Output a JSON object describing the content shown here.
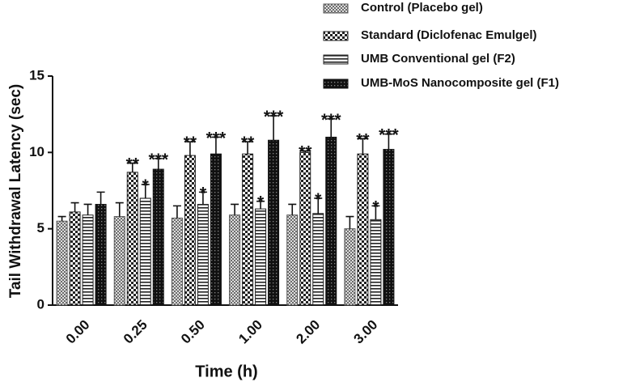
{
  "chart_data": {
    "type": "bar",
    "ylabel": "Tail Withdrawal Latency (sec)",
    "xlabel": "Time (h)",
    "categories": [
      "0.00",
      "0.25",
      "0.50",
      "1.00",
      "2.00",
      "3.00"
    ],
    "ylim": [
      0,
      15
    ],
    "yticks": [
      0,
      5,
      10,
      15
    ],
    "legend": "top-right",
    "series": [
      {
        "name": "Control (Placebo gel)",
        "color": "#555555",
        "pattern": "crosshatch",
        "values": [
          5.5,
          5.8,
          5.7,
          5.9,
          5.9,
          5.0
        ],
        "errors": [
          0.3,
          0.9,
          0.8,
          0.7,
          0.7,
          0.8
        ],
        "annotations": [
          null,
          null,
          null,
          null,
          null,
          null
        ]
      },
      {
        "name": "Standard (Diclofenac Emulgel)",
        "color": "#222222",
        "pattern": "checker",
        "values": [
          6.1,
          8.7,
          9.8,
          9.9,
          10.0,
          9.9
        ],
        "errors": [
          0.6,
          0.6,
          0.9,
          0.8,
          0.1,
          1.0
        ],
        "annotations": [
          null,
          "**",
          "**",
          "**",
          "**",
          "**"
        ]
      },
      {
        "name": "UMB Conventional gel  (F2)",
        "color": "#222222",
        "pattern": "hstripes",
        "values": [
          5.9,
          7.0,
          6.6,
          6.3,
          6.0,
          5.6
        ],
        "errors": [
          0.7,
          0.9,
          0.8,
          0.5,
          1.0,
          0.9
        ],
        "annotations": [
          null,
          "*",
          "*",
          "*",
          "*",
          "*"
        ]
      },
      {
        "name": "UMB-MoS Nanocomposite gel (F1)",
        "color": "#111111",
        "pattern": "darkdots",
        "values": [
          6.6,
          8.9,
          9.9,
          10.8,
          11.0,
          10.2
        ],
        "errors": [
          0.8,
          0.7,
          1.1,
          1.6,
          1.2,
          1.0
        ],
        "annotations": [
          null,
          "***",
          "***",
          "***",
          "***",
          "***"
        ]
      }
    ]
  }
}
